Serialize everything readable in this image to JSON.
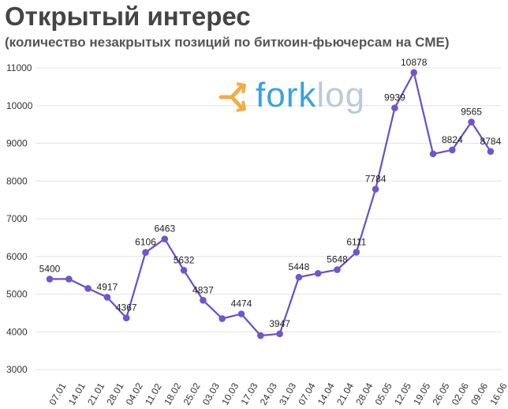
{
  "header": {
    "title": "Открытый интерес",
    "subtitle": "(количество незакрытых позиций по биткоин-фьючерсам на CME)"
  },
  "logo": {
    "text_main": "fork",
    "text_faded": "log",
    "icon": "fork-arrows-icon"
  },
  "colors": {
    "line": "#6a4fc4",
    "marker": "#6f55d0",
    "grid": "#e3e3e3",
    "logo_blue": "#2e9fd8",
    "logo_orange": "#f2a93b"
  },
  "chart_data": {
    "type": "line",
    "title": "Открытый интерес",
    "subtitle": "(количество незакрытых позиций по биткоин-фьючерсам на CME)",
    "ylim": [
      3000,
      11000
    ],
    "yticks": [
      3000,
      4000,
      5000,
      6000,
      7000,
      8000,
      9000,
      10000,
      11000
    ],
    "grid": true,
    "categories": [
      "07.01",
      "14.01",
      "21.01",
      "28.01",
      "04.02",
      "11.02",
      "18.02",
      "25.02",
      "03.03",
      "10.03",
      "17.03",
      "24.03",
      "31.03",
      "07.04",
      "14.04",
      "21.04",
      "28.04",
      "05.05",
      "12.05",
      "19.05",
      "26.05",
      "02.06",
      "09.06",
      "16.06"
    ],
    "series": [
      {
        "values": [
          5400,
          5400,
          5150,
          4917,
          4367,
          6106,
          6463,
          5632,
          4837,
          4350,
          4474,
          3900,
          3947,
          5448,
          5550,
          5648,
          6111,
          7784,
          9939,
          10878,
          8720,
          8824,
          9565,
          8784
        ],
        "labels": [
          "5400",
          "",
          "",
          "4917",
          "4367",
          "6106",
          "6463",
          "5632",
          "4837",
          "",
          "4474",
          "",
          "3947",
          "5448",
          "",
          "5648",
          "6111",
          "7784",
          "9939",
          "10878",
          "",
          "8824",
          "9565",
          "8784"
        ]
      }
    ]
  }
}
